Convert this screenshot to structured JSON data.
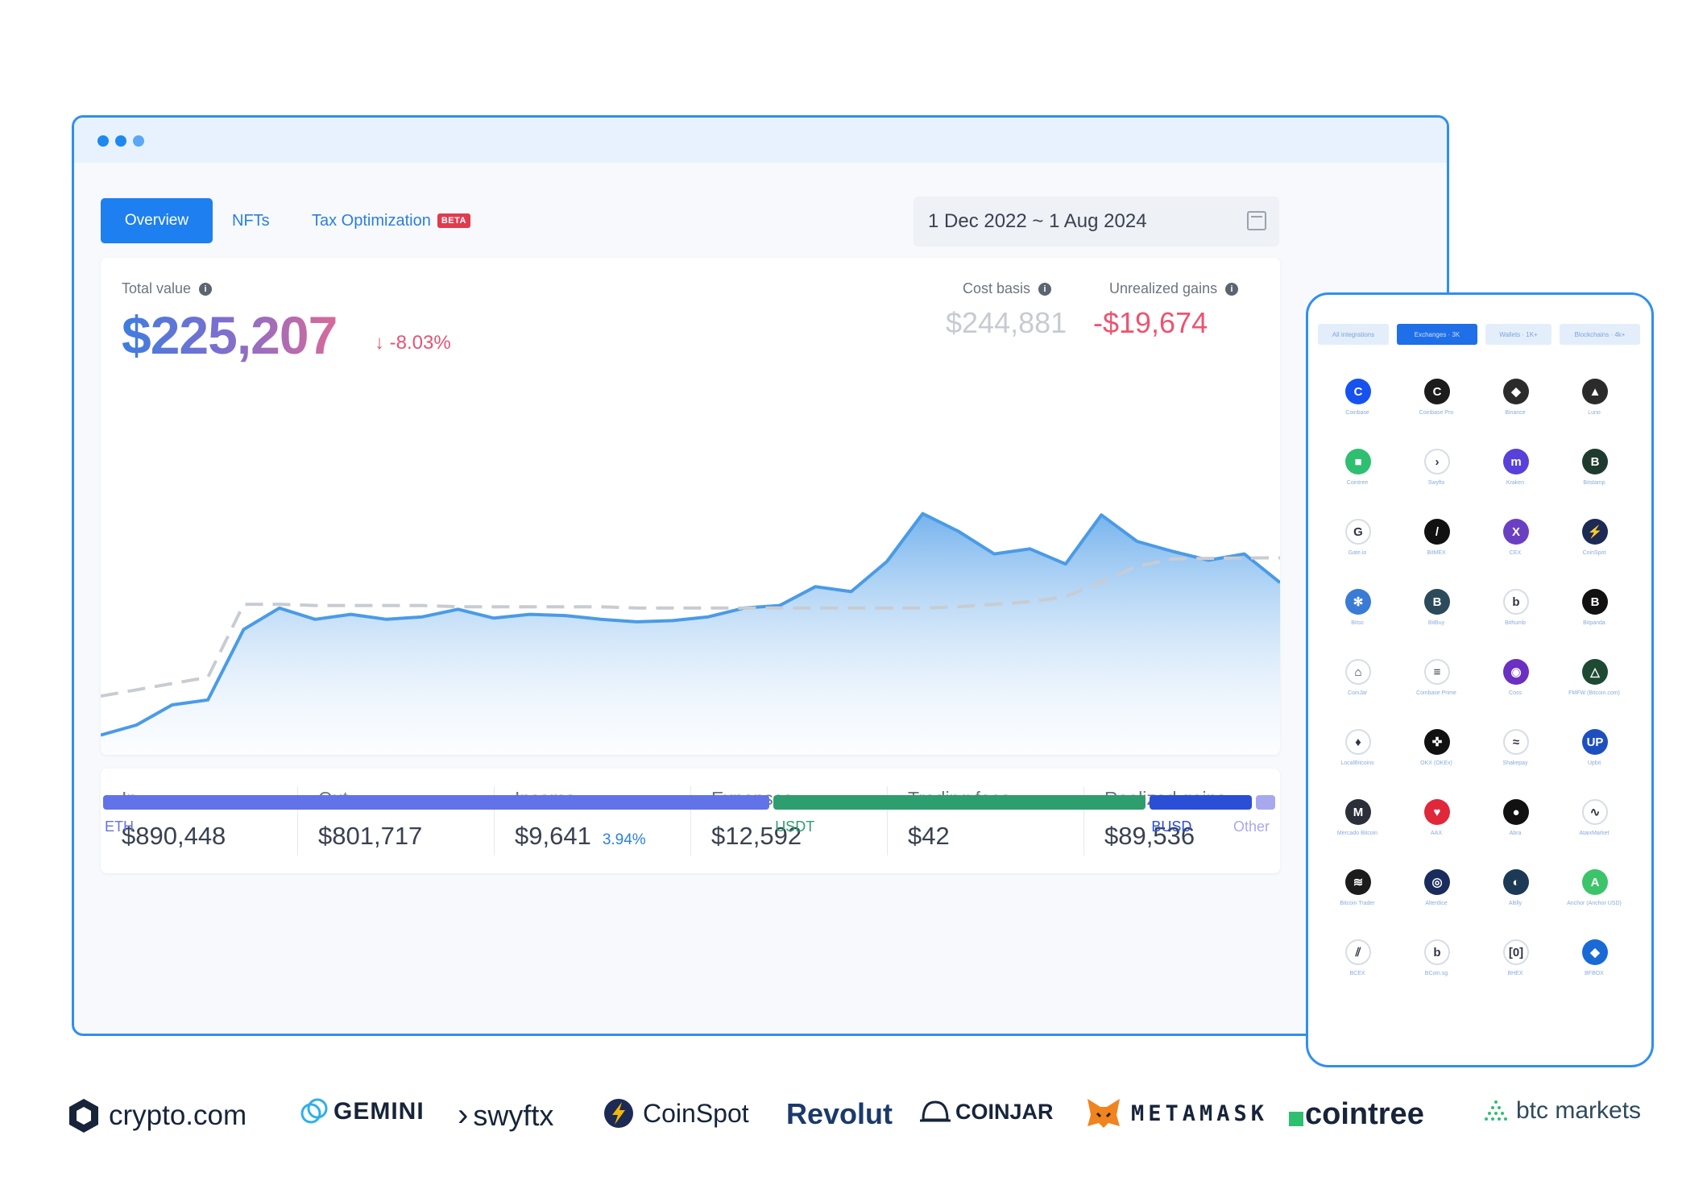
{
  "window": {
    "tabs": [
      {
        "label": "Overview",
        "active": true
      },
      {
        "label": "NFTs",
        "active": false
      },
      {
        "label": "Tax Optimization",
        "badge": "BETA",
        "active": false
      }
    ],
    "date_range": "1 Dec 2022 ~ 1 Aug 2024",
    "summary": {
      "total_label": "Total value",
      "total_value": "$225,207",
      "change": "-8.03%",
      "cost_basis_label": "Cost basis",
      "cost_basis_value": "$244,881",
      "unrealized_label": "Unrealized gains",
      "unrealized_value": "-$19,674"
    },
    "stats": [
      {
        "label": "In",
        "value": "$890,448"
      },
      {
        "label": "Out",
        "value": "$801,717"
      },
      {
        "label": "Income",
        "value": "$9,641",
        "extra": "3.94%"
      },
      {
        "label": "Expenses",
        "value": "$12,592"
      },
      {
        "label": "Trading fees",
        "value": "$42"
      },
      {
        "label": "Realized gains",
        "value": "$89,536"
      }
    ],
    "allocation": [
      {
        "label": "ETH",
        "share": 0.57,
        "color": "#6272e8"
      },
      {
        "label": "USDT",
        "share": 0.32,
        "color": "#2e9e6e"
      },
      {
        "label": "BUSD",
        "share": 0.09,
        "color": "#2a4fd6"
      },
      {
        "label": "Other",
        "share": 0.02,
        "color": "#a8a8ef"
      }
    ]
  },
  "phone": {
    "tabs": [
      {
        "label": "All integrations",
        "active": false
      },
      {
        "label": "Exchanges · 3K",
        "active": true
      },
      {
        "label": "Wallets · 1K+",
        "active": false
      },
      {
        "label": "Blockchains · 4k+",
        "active": false
      }
    ],
    "integrations": [
      {
        "name": "Coinbase",
        "color": "#1652f0",
        "glyph": "C"
      },
      {
        "name": "Coinbase Pro",
        "color": "#1c1c1c",
        "glyph": "C"
      },
      {
        "name": "Binance",
        "color": "#2b2b2b",
        "glyph": "◆"
      },
      {
        "name": "Luno",
        "color": "#2b2b2b",
        "glyph": "▲"
      },
      {
        "name": "Cointree",
        "color": "#2fbf71",
        "glyph": "■"
      },
      {
        "name": "Swyftx",
        "color": "#ffffff",
        "glyph": "›"
      },
      {
        "name": "Kraken",
        "color": "#5741d9",
        "glyph": "m"
      },
      {
        "name": "Bitstamp",
        "color": "#1f3b2f",
        "glyph": "B"
      },
      {
        "name": "Gate.io",
        "color": "#ffffff",
        "glyph": "G"
      },
      {
        "name": "BitMEX",
        "color": "#111111",
        "glyph": "/"
      },
      {
        "name": "CEX",
        "color": "#6b3fc2",
        "glyph": "X"
      },
      {
        "name": "CoinSpot",
        "color": "#1c2a55",
        "glyph": "⚡"
      },
      {
        "name": "Bitso",
        "color": "#3a7bd5",
        "glyph": "✻"
      },
      {
        "name": "BitBuy",
        "color": "#2c4a5a",
        "glyph": "B"
      },
      {
        "name": "Bithumb",
        "color": "#ffffff",
        "glyph": "b"
      },
      {
        "name": "Bitpanda",
        "color": "#111111",
        "glyph": "B"
      },
      {
        "name": "CoinJar",
        "color": "#ffffff",
        "glyph": "⌂"
      },
      {
        "name": "Coinbase Prime",
        "color": "#ffffff",
        "glyph": "≡"
      },
      {
        "name": "Coss",
        "color": "#6b2fc2",
        "glyph": "◉"
      },
      {
        "name": "FMFW (Bitcoin.com)",
        "color": "#1e4a33",
        "glyph": "△"
      },
      {
        "name": "LocalBitcoins",
        "color": "#ffffff",
        "glyph": "♦"
      },
      {
        "name": "OKX (OKEx)",
        "color": "#111111",
        "glyph": "✜"
      },
      {
        "name": "Shakepay",
        "color": "#ffffff",
        "glyph": "≈"
      },
      {
        "name": "Upbit",
        "color": "#1d4fbf",
        "glyph": "UP"
      },
      {
        "name": "Mercado Bitcoin",
        "color": "#2b2f3a",
        "glyph": "M"
      },
      {
        "name": "AAX",
        "color": "#e0283a",
        "glyph": "♥"
      },
      {
        "name": "Abra",
        "color": "#111111",
        "glyph": "●"
      },
      {
        "name": "AtaixMarket",
        "color": "#ffffff",
        "glyph": "∿"
      },
      {
        "name": "Bitcoin Trader",
        "color": "#1c1c1c",
        "glyph": "≋"
      },
      {
        "name": "Alterdice",
        "color": "#1a2c5c",
        "glyph": "◎"
      },
      {
        "name": "Altilly",
        "color": "#1c3a55",
        "glyph": "◐"
      },
      {
        "name": "Anchor (Anchor USD)",
        "color": "#3cc46a",
        "glyph": "A"
      },
      {
        "name": "BCEX",
        "color": "#ffffff",
        "glyph": "⫽"
      },
      {
        "name": "BCoin.sg",
        "color": "#ffffff",
        "glyph": "b"
      },
      {
        "name": "BHEX",
        "color": "#ffffff",
        "glyph": "[0]"
      },
      {
        "name": "BFBOX",
        "color": "#1a6ad6",
        "glyph": "◆"
      }
    ]
  },
  "logos": [
    {
      "label": "crypto.com",
      "icon": "shield-hexagon-icon"
    },
    {
      "label": "GEMINI",
      "icon": "gemini-icon"
    },
    {
      "label": "swyftx",
      "icon": "swyftx-chevron-icon"
    },
    {
      "label": "CoinSpot",
      "icon": "coinspot-icon"
    },
    {
      "label": "Revolut",
      "icon": ""
    },
    {
      "label": "COINJAR",
      "icon": "bell-icon"
    },
    {
      "label": "METAMASK",
      "icon": "fox-icon"
    },
    {
      "label": "cointree",
      "icon": "square-icon"
    },
    {
      "label": "btc markets",
      "icon": "triangle-dots-icon"
    }
  ],
  "chart_data": {
    "type": "area",
    "title": "",
    "xlabel": "",
    "ylabel": "",
    "x_range": [
      "1 Dec 2022",
      "1 Aug 2024"
    ],
    "ylim": [
      0,
      300000
    ],
    "series": [
      {
        "name": "",
        "style": "area",
        "color": "#4a9be6",
        "values": [
          104000,
          112000,
          128000,
          132000,
          188000,
          205000,
          196000,
          200000,
          196000,
          198000,
          204000,
          197000,
          200000,
          199000,
          196000,
          194000,
          195000,
          198000,
          205000,
          207000,
          222000,
          218000,
          242000,
          280000,
          266000,
          248000,
          252000,
          240000,
          279000,
          258000,
          250000,
          243000,
          248000,
          225207
        ]
      },
      {
        "name": "",
        "style": "dashed",
        "color": "#c8ccd2",
        "values": [
          135000,
          140000,
          145000,
          150000,
          208000,
          208000,
          207000,
          207000,
          207000,
          207000,
          206000,
          206000,
          206000,
          206000,
          206000,
          205000,
          205000,
          205000,
          205000,
          205000,
          205000,
          205000,
          205000,
          205000,
          206000,
          208000,
          210000,
          214000,
          226000,
          238000,
          244000,
          244500,
          244800,
          244881
        ]
      }
    ]
  }
}
